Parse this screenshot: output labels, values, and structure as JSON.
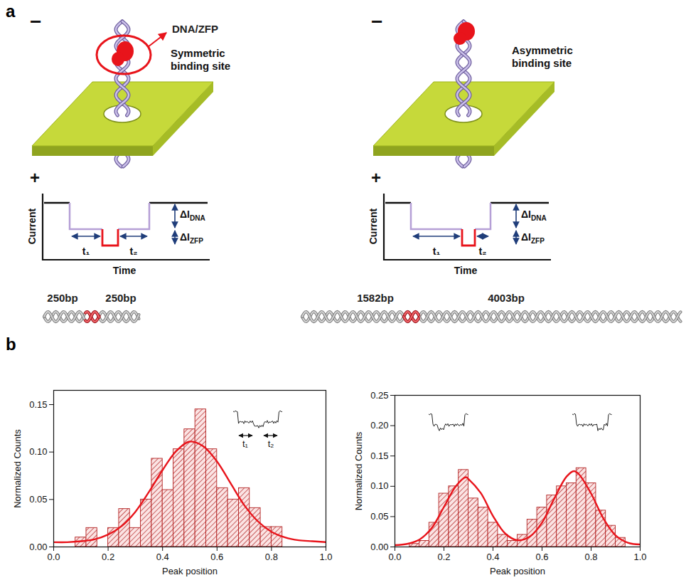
{
  "panel_a": {
    "label": "a",
    "left": {
      "charge_top": "−",
      "charge_bottom": "+",
      "callout": "DNA/ZFP",
      "site": "Symmetric binding site",
      "trace": {
        "y_label": "Current",
        "x_label": "Time",
        "delta_dna": {
          "text": "ΔI",
          "sub": "DNA"
        },
        "delta_zfp": {
          "text": "ΔI",
          "sub": "ZFP"
        },
        "t1": "t₁",
        "t2": "t₂"
      },
      "dna_lengths": [
        "250bp",
        "250bp"
      ]
    },
    "right": {
      "charge_top": "−",
      "charge_bottom": "+",
      "site": "Asymmetric binding site",
      "trace": {
        "y_label": "Current",
        "x_label": "Time",
        "delta_dna": {
          "text": "ΔI",
          "sub": "DNA"
        },
        "delta_zfp": {
          "text": "ΔI",
          "sub": "ZFP"
        },
        "t1": "t₁",
        "t2": "t₂"
      },
      "dna_lengths": [
        "1582bp",
        "4003bp"
      ]
    }
  },
  "panel_b_label": "b",
  "chart_data": [
    {
      "type": "histogram",
      "x_label": "Peak position",
      "y_label": "Normalized Counts",
      "bins": [
        0.08,
        0.12,
        0.16,
        0.2,
        0.24,
        0.28,
        0.32,
        0.36,
        0.4,
        0.44,
        0.48,
        0.52,
        0.56,
        0.6,
        0.64,
        0.68,
        0.72,
        0.76,
        0.8,
        0.84
      ],
      "values": [
        0.01,
        0.02,
        0,
        0.02,
        0.04,
        0.02,
        0.05,
        0.093,
        0.06,
        0.103,
        0.124,
        0.145,
        0.103,
        0.062,
        0.05,
        0.062,
        0.041,
        0.021,
        0.021
      ],
      "color": "#b22222",
      "fit": {
        "x": [
          0,
          0.05,
          0.1,
          0.15,
          0.2,
          0.25,
          0.3,
          0.35,
          0.4,
          0.45,
          0.5,
          0.55,
          0.6,
          0.65,
          0.7,
          0.75,
          0.8,
          0.85,
          0.9,
          0.95,
          1
        ],
        "values": [
          0.005,
          0.005,
          0.006,
          0.008,
          0.013,
          0.022,
          0.037,
          0.058,
          0.081,
          0.101,
          0.111,
          0.106,
          0.09,
          0.067,
          0.044,
          0.027,
          0.016,
          0.01,
          0.007,
          0.006,
          0.005
        ],
        "color": "#e8141b"
      },
      "xlim": [
        0,
        1
      ],
      "ylim": [
        0,
        0.165
      ],
      "xticks": [
        {
          "value": 0,
          "label": "0.0"
        },
        {
          "value": 0.2,
          "label": "0.2"
        },
        {
          "value": 0.4,
          "label": "0.4"
        },
        {
          "value": 0.6,
          "label": "0.6"
        },
        {
          "value": 0.8,
          "label": "0.8"
        },
        {
          "value": 1,
          "label": "1.0"
        }
      ],
      "yticks": [
        {
          "value": 0,
          "label": "0.00"
        },
        {
          "value": 0.05,
          "label": "0.05"
        },
        {
          "value": 0.1,
          "label": "0.10"
        },
        {
          "value": 0.15,
          "label": "0.15"
        }
      ],
      "annotations": [
        "t₁",
        "t₂"
      ]
    },
    {
      "type": "histogram",
      "x_label": "Peak position",
      "y_label": "Normalized Counts",
      "bins": [
        0.06,
        0.1,
        0.14,
        0.18,
        0.22,
        0.26,
        0.3,
        0.34,
        0.38,
        0.42,
        0.46,
        0.5,
        0.54,
        0.58,
        0.62,
        0.66,
        0.7,
        0.74,
        0.78,
        0.82,
        0.86,
        0.9,
        0.94
      ],
      "values": [
        0.005,
        0.01,
        0.04,
        0.088,
        0.1,
        0.127,
        0.08,
        0.065,
        0.04,
        0.02,
        0.01,
        0.02,
        0.045,
        0.065,
        0.085,
        0.1,
        0.105,
        0.13,
        0.105,
        0.06,
        0.035,
        0.015
      ],
      "color": "#b22222",
      "fit": {
        "x": [
          0,
          0.05,
          0.1,
          0.15,
          0.2,
          0.25,
          0.29,
          0.3,
          0.35,
          0.4,
          0.45,
          0.5,
          0.55,
          0.6,
          0.65,
          0.7,
          0.73,
          0.75,
          0.8,
          0.85,
          0.9,
          0.95,
          1
        ],
        "values": [
          0.003,
          0.005,
          0.012,
          0.031,
          0.066,
          0.101,
          0.115,
          0.112,
          0.089,
          0.051,
          0.022,
          0.011,
          0.017,
          0.04,
          0.08,
          0.116,
          0.125,
          0.12,
          0.088,
          0.047,
          0.019,
          0.007,
          0.004
        ],
        "color": "#e8141b"
      },
      "xlim": [
        0,
        1
      ],
      "ylim": [
        0,
        0.25
      ],
      "xticks": [
        {
          "value": 0,
          "label": "0.0"
        },
        {
          "value": 0.2,
          "label": "0.2"
        },
        {
          "value": 0.4,
          "label": "0.4"
        },
        {
          "value": 0.6,
          "label": "0.6"
        },
        {
          "value": 0.8,
          "label": "0.8"
        },
        {
          "value": 1,
          "label": "1.0"
        }
      ],
      "yticks": [
        {
          "value": 0,
          "label": "0.00"
        },
        {
          "value": 0.05,
          "label": "0.05"
        },
        {
          "value": 0.1,
          "label": "0.10"
        },
        {
          "value": 0.15,
          "label": "0.15"
        },
        {
          "value": 0.2,
          "label": "0.20"
        },
        {
          "value": 0.25,
          "label": "0.25"
        }
      ]
    }
  ]
}
